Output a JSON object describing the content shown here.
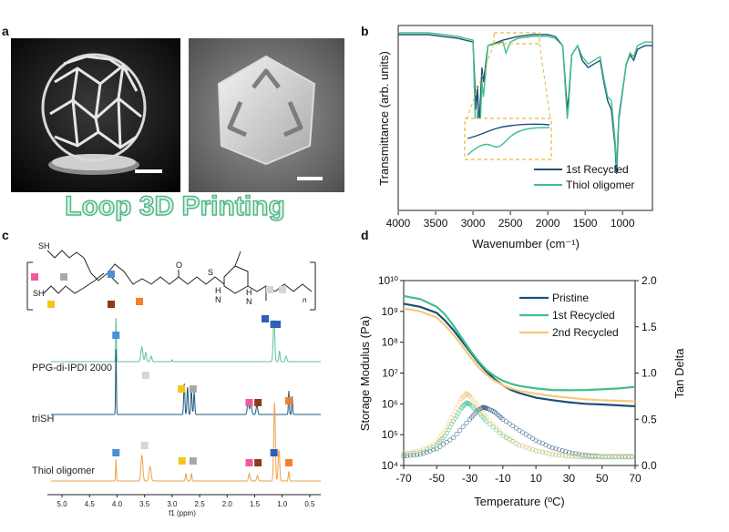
{
  "panels": {
    "a": {
      "label": "a",
      "title": "Loop 3D Printing"
    },
    "b": {
      "label": "b"
    },
    "c": {
      "label": "c"
    },
    "d": {
      "label": "d"
    }
  },
  "ir_chart": {
    "type": "line",
    "xlabel": "Wavenumber (cm⁻¹)",
    "ylabel": "Transmittance (arb. units)",
    "x_ticks": [
      "4000",
      "3500",
      "3000",
      "2500",
      "2000",
      "1500",
      "1000"
    ],
    "legend": [
      {
        "name": "1st Recycled",
        "color": "#1a4f7a"
      },
      {
        "name": "Thiol oligomer",
        "color": "#3fbf8c"
      }
    ]
  },
  "nmr": {
    "spectra": [
      {
        "label": "PPG-di-IPDI 2000",
        "color": "#5dc39a"
      },
      {
        "label": "triSH",
        "color": "#1d5a7c"
      },
      {
        "label": "Thiol oligomer",
        "color": "#f0a04b"
      }
    ],
    "x_ticks": [
      "5.0",
      "4.5",
      "4.0",
      "3.5",
      "3.0",
      "2.5",
      "2.0",
      "1.5",
      "1.0",
      "0.5"
    ],
    "xlabel": "f1 (ppm)",
    "marker_colors": {
      "blue": "#4a90d9",
      "gray": "#a8a8a8",
      "lightgray": "#d6d6d6",
      "yellow": "#f5c518",
      "pink": "#ef5a9a",
      "brown": "#8b3a1a",
      "orange": "#f08030",
      "darkblue": "#2d5fb8"
    },
    "structure_labels": {
      "sh1": "SH",
      "sh2": "SH",
      "o": "O",
      "s": "S",
      "h1": "H",
      "n1": "N",
      "h2": "H",
      "n2": "N",
      "n_sub": "n"
    }
  },
  "chart_data": [
    {
      "type": "line",
      "title": "",
      "xlabel": "Wavenumber (cm⁻¹)",
      "ylabel": "Transmittance (arb. units)",
      "xlim": [
        4000,
        600
      ],
      "series": [
        {
          "name": "1st Recycled",
          "color": "#1a4f7a",
          "x": [
            4000,
            3600,
            3400,
            3200,
            3000,
            2960,
            2940,
            2920,
            2880,
            2860,
            2800,
            2600,
            2400,
            2200,
            2000,
            1900,
            1800,
            1740,
            1720,
            1680,
            1600,
            1540,
            1460,
            1380,
            1300,
            1250,
            1200,
            1150,
            1100,
            1080,
            1050,
            1000,
            950,
            900,
            850,
            800,
            700,
            600
          ],
          "y": [
            0.96,
            0.96,
            0.95,
            0.94,
            0.92,
            0.55,
            0.68,
            0.45,
            0.78,
            0.7,
            0.9,
            0.93,
            0.95,
            0.96,
            0.96,
            0.95,
            0.9,
            0.55,
            0.62,
            0.85,
            0.9,
            0.82,
            0.78,
            0.8,
            0.82,
            0.7,
            0.6,
            0.55,
            0.35,
            0.2,
            0.5,
            0.65,
            0.8,
            0.85,
            0.82,
            0.88,
            0.9,
            0.9
          ]
        },
        {
          "name": "Thiol oligomer",
          "color": "#3fbf8c",
          "x": [
            4000,
            3600,
            3400,
            3200,
            3000,
            2960,
            2940,
            2920,
            2880,
            2860,
            2800,
            2600,
            2560,
            2500,
            2400,
            2200,
            2000,
            1900,
            1800,
            1740,
            1720,
            1680,
            1600,
            1540,
            1460,
            1380,
            1300,
            1250,
            1200,
            1150,
            1100,
            1080,
            1050,
            1000,
            950,
            900,
            850,
            800,
            700,
            600
          ],
          "y": [
            0.97,
            0.97,
            0.96,
            0.95,
            0.93,
            0.35,
            0.55,
            0.3,
            0.7,
            0.62,
            0.9,
            0.92,
            0.86,
            0.92,
            0.94,
            0.95,
            0.95,
            0.94,
            0.9,
            0.5,
            0.58,
            0.85,
            0.9,
            0.84,
            0.8,
            0.82,
            0.84,
            0.72,
            0.62,
            0.6,
            0.38,
            0.25,
            0.52,
            0.66,
            0.8,
            0.86,
            0.84,
            0.9,
            0.92,
            0.92
          ]
        }
      ],
      "x_ticks": [
        4000,
        3500,
        3000,
        2500,
        2000,
        1500,
        1000
      ],
      "legend_position": "bottom-right"
    },
    {
      "type": "line",
      "title": "",
      "xlabel": "Temperature (ºC)",
      "ylabel": "Storage Modulus (Pa)",
      "y2label": "Tan Delta",
      "xlim": [
        -70,
        70
      ],
      "ylim_log10": [
        4,
        10
      ],
      "y2lim": [
        0.0,
        2.0
      ],
      "x_ticks": [
        -70,
        -50,
        -30,
        -10,
        10,
        30,
        50,
        70
      ],
      "y_ticks": [
        "10⁴",
        "10⁵",
        "10⁶",
        "10⁷",
        "10⁸",
        "10⁹",
        "10¹⁰"
      ],
      "y2_ticks": [
        "0.0",
        "0.5",
        "1.0",
        "1.5",
        "2.0"
      ],
      "series": [
        {
          "name": "Pristine",
          "color": "#1a4f7a",
          "x": [
            -70,
            -60,
            -50,
            -45,
            -40,
            -35,
            -30,
            -25,
            -20,
            -15,
            -10,
            -5,
            0,
            10,
            20,
            30,
            40,
            50,
            60,
            70
          ],
          "log_modulus": [
            9.25,
            9.15,
            8.95,
            8.7,
            8.4,
            8.05,
            7.7,
            7.35,
            7.05,
            6.8,
            6.6,
            6.45,
            6.35,
            6.2,
            6.12,
            6.05,
            6.0,
            5.98,
            5.95,
            5.92
          ],
          "tan_x": [
            -70,
            -60,
            -50,
            -40,
            -30,
            -25,
            -22,
            -20,
            -15,
            -10,
            0,
            10,
            20,
            30,
            40,
            50,
            60,
            70
          ],
          "tan_delta": [
            0.1,
            0.12,
            0.18,
            0.3,
            0.5,
            0.6,
            0.63,
            0.62,
            0.58,
            0.5,
            0.38,
            0.27,
            0.19,
            0.14,
            0.11,
            0.1,
            0.1,
            0.1
          ]
        },
        {
          "name": "1st Recycled",
          "color": "#3fbf8c",
          "x": [
            -70,
            -60,
            -50,
            -45,
            -40,
            -35,
            -30,
            -25,
            -20,
            -15,
            -10,
            -5,
            0,
            10,
            20,
            30,
            40,
            50,
            60,
            70
          ],
          "log_modulus": [
            9.5,
            9.4,
            9.15,
            8.9,
            8.55,
            8.15,
            7.75,
            7.4,
            7.1,
            6.9,
            6.75,
            6.65,
            6.58,
            6.5,
            6.45,
            6.44,
            6.45,
            6.47,
            6.5,
            6.55
          ],
          "tan_x": [
            -70,
            -60,
            -50,
            -45,
            -40,
            -35,
            -32,
            -30,
            -25,
            -20,
            -10,
            0,
            10,
            20,
            30,
            40,
            50,
            60,
            70
          ],
          "tan_delta": [
            0.12,
            0.14,
            0.22,
            0.32,
            0.48,
            0.62,
            0.68,
            0.66,
            0.58,
            0.48,
            0.32,
            0.22,
            0.16,
            0.12,
            0.1,
            0.09,
            0.09,
            0.09,
            0.09
          ]
        },
        {
          "name": "2nd Recycled",
          "color": "#f7c97a",
          "x": [
            -70,
            -60,
            -50,
            -45,
            -40,
            -35,
            -30,
            -25,
            -20,
            -15,
            -10,
            -5,
            0,
            10,
            20,
            30,
            40,
            50,
            60,
            70
          ],
          "log_modulus": [
            9.1,
            9.0,
            8.8,
            8.55,
            8.25,
            7.9,
            7.55,
            7.2,
            6.95,
            6.75,
            6.6,
            6.5,
            6.42,
            6.33,
            6.25,
            6.2,
            6.15,
            6.12,
            6.1,
            6.08
          ],
          "tan_x": [
            -70,
            -60,
            -50,
            -45,
            -40,
            -35,
            -32,
            -30,
            -25,
            -20,
            -10,
            0,
            10,
            20,
            30,
            40,
            50,
            60,
            70
          ],
          "tan_delta": [
            0.13,
            0.16,
            0.25,
            0.38,
            0.55,
            0.72,
            0.78,
            0.75,
            0.64,
            0.52,
            0.34,
            0.22,
            0.16,
            0.12,
            0.1,
            0.1,
            0.1,
            0.1,
            0.1
          ]
        }
      ],
      "legend_position": "top-right"
    }
  ]
}
